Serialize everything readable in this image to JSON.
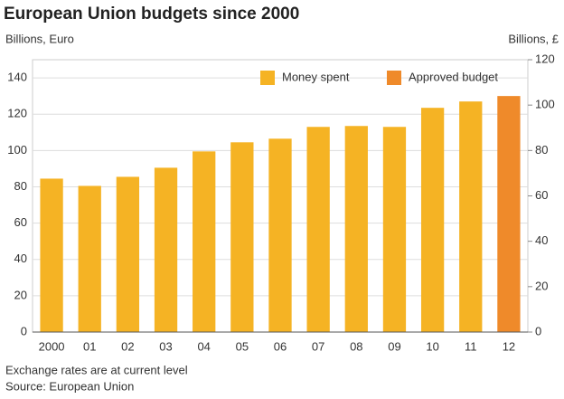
{
  "chart_data": {
    "type": "bar",
    "title": "European Union budgets since 2000",
    "y_label": "Billions, Euro",
    "y2_label": "Billions, £",
    "notes": [
      "Exchange rates are at current level",
      "Source: European Union"
    ],
    "categories": [
      "2000",
      "01",
      "02",
      "03",
      "04",
      "05",
      "06",
      "07",
      "08",
      "09",
      "10",
      "11",
      "12"
    ],
    "series": [
      {
        "name": "Money spent",
        "color": "#f5b324",
        "values": [
          84.5,
          80.5,
          85.5,
          90.5,
          99.5,
          104.5,
          106.5,
          113,
          113.5,
          113,
          123.5,
          127,
          null
        ]
      },
      {
        "name": "Approved budget",
        "color": "#ef8a2a",
        "values": [
          null,
          null,
          null,
          null,
          null,
          null,
          null,
          null,
          null,
          null,
          null,
          null,
          130
        ]
      }
    ],
    "ylim": [
      0,
      150
    ],
    "yticks": [
      0,
      20,
      40,
      60,
      80,
      100,
      120,
      140
    ],
    "y2lim": [
      0,
      120
    ],
    "y2ticks": [
      0,
      20,
      40,
      60,
      80,
      100,
      120
    ],
    "grid": true,
    "legend": "upper right"
  }
}
